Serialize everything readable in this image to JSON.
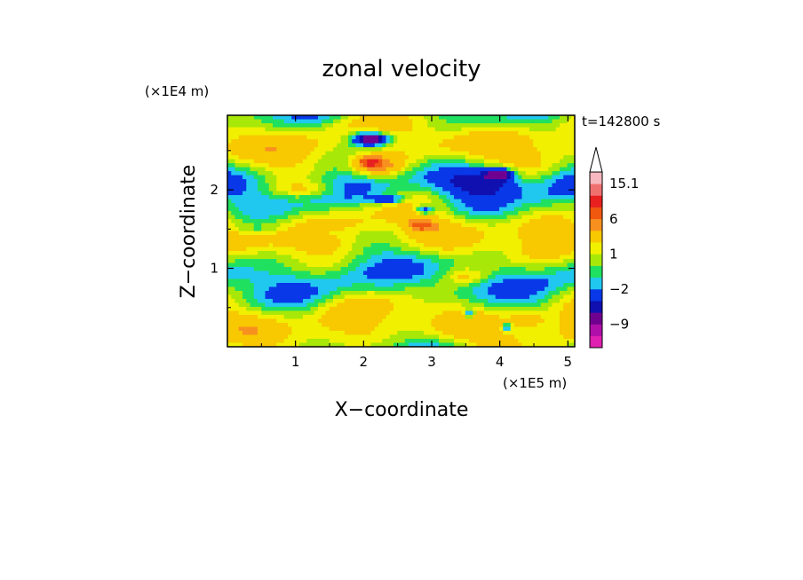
{
  "chart_data": {
    "type": "heatmap",
    "title": "zonal velocity",
    "xlabel": "X−coordinate",
    "ylabel": "Z−coordinate",
    "x_unit": "(×1E5 m)",
    "y_unit": "(×1E4 m)",
    "time_label": "t=142800 s",
    "xlim": [
      0,
      5.1
    ],
    "ylim": [
      0,
      2.95
    ],
    "x_ticks": [
      "1",
      "2",
      "3",
      "4",
      "5"
    ],
    "y_ticks": [
      "1",
      "2"
    ],
    "colorbar": {
      "levels": [
        -15,
        -12,
        -9,
        -6,
        -4,
        -2,
        -1,
        0,
        1,
        2,
        4,
        6,
        9,
        12,
        15.1
      ],
      "labels": [
        "15.1",
        "6",
        "1",
        "−2",
        "−9"
      ],
      "colors": [
        "#e020b0",
        "#b010a8",
        "#700090",
        "#1010b0",
        "#0838e8",
        "#20c8f0",
        "#20e060",
        "#a8e808",
        "#f0f000",
        "#f8c800",
        "#f89020",
        "#f05810",
        "#e82020",
        "#f07070",
        "#f8b8c0"
      ],
      "extend": "max"
    },
    "grid": false,
    "features": [
      {
        "level": -4,
        "cx": 2.1,
        "cz": 2.65,
        "rx": 0.35,
        "rz": 0.12
      },
      {
        "level": -6,
        "cx": 2.1,
        "cz": 2.65,
        "rx": 0.2,
        "rz": 0.06
      },
      {
        "level": -4,
        "cx": 3.8,
        "cz": 2.1,
        "rx": 0.5,
        "rz": 0.17
      },
      {
        "level": -6,
        "cx": 4.0,
        "cz": 2.2,
        "rx": 0.2,
        "rz": 0.07
      },
      {
        "level": -4,
        "cx": 2.35,
        "cz": 1.88,
        "rx": 0.25,
        "rz": 0.05
      },
      {
        "level": -4,
        "cx": 2.9,
        "cz": 1.75,
        "rx": 0.15,
        "rz": 0.06
      },
      {
        "level": -4,
        "cx": 3.55,
        "cz": 0.42,
        "rx": 0.08,
        "rz": 0.05
      },
      {
        "level": -4,
        "cx": 4.1,
        "cz": 0.25,
        "rx": 0.06,
        "rz": 0.05
      },
      {
        "level": 4,
        "cx": 2.2,
        "cz": 2.3,
        "rx": 0.4,
        "rz": 0.15
      },
      {
        "level": 6,
        "cx": 2.1,
        "cz": 2.35,
        "rx": 0.15,
        "rz": 0.06
      },
      {
        "level": 4,
        "cx": 2.85,
        "cz": 1.55,
        "rx": 0.18,
        "rz": 0.07
      },
      {
        "level": 2,
        "cx": 1.2,
        "cz": 2.0,
        "rx": 0.5,
        "rz": 0.1
      },
      {
        "level": 2,
        "cx": 3.5,
        "cz": 0.9,
        "rx": 0.3,
        "rz": 0.1
      },
      {
        "level": 2,
        "cx": 4.4,
        "cz": 0.35,
        "rx": 0.25,
        "rz": 0.1
      },
      {
        "level": -1,
        "cx": 1.5,
        "cz": 1.45,
        "rx": 0.4,
        "rz": 0.07
      },
      {
        "level": -1,
        "cx": 0.4,
        "cz": 1.5,
        "rx": 0.35,
        "rz": 0.05
      }
    ]
  }
}
